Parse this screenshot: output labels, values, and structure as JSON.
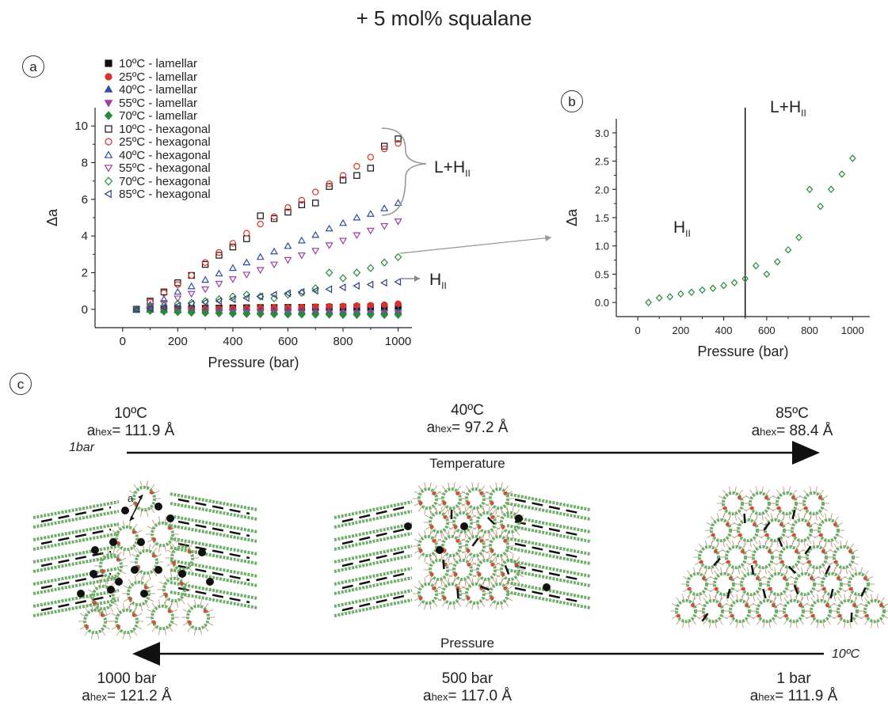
{
  "title": "+ 5 mol% squalane",
  "panels": {
    "a": "a",
    "b": "b",
    "c": "c"
  },
  "chart_data": [
    {
      "type": "scatter",
      "panel": "a",
      "xlabel": "Pressure (bar)",
      "ylabel": "Δa",
      "xlim": [
        -100,
        1050
      ],
      "ylim": [
        -1,
        11
      ],
      "xticks": [
        0,
        200,
        400,
        600,
        800,
        1000
      ],
      "yticks": [
        0,
        2,
        4,
        6,
        8,
        10
      ],
      "legend_placement": "top-left",
      "series": [
        {
          "name": "10ºC - lamellar",
          "marker": "square-filled",
          "color": "#111111",
          "x": [
            50,
            100,
            150,
            200,
            250,
            300,
            350,
            400,
            450,
            500,
            550,
            600,
            650,
            700,
            750,
            800,
            850,
            900,
            950,
            1000
          ],
          "y": [
            0,
            0.02,
            0.03,
            0.04,
            0.05,
            0.06,
            0.07,
            0.08,
            0.09,
            0.1,
            0.1,
            0.11,
            0.11,
            0.12,
            0.12,
            0.13,
            0.13,
            0.14,
            0.14,
            0.15
          ]
        },
        {
          "name": "25ºC - lamellar",
          "marker": "circle-filled",
          "color": "#d9312b",
          "x": [
            50,
            100,
            150,
            200,
            250,
            300,
            350,
            400,
            450,
            500,
            550,
            600,
            650,
            700,
            750,
            800,
            850,
            900,
            950,
            1000
          ],
          "y": [
            0,
            0.0,
            0.0,
            0.0,
            0.02,
            0.03,
            0.04,
            0.05,
            0.06,
            0.08,
            0.09,
            0.1,
            0.12,
            0.14,
            0.16,
            0.18,
            0.2,
            0.22,
            0.25,
            0.3
          ]
        },
        {
          "name": "40ºC - lamellar",
          "marker": "triangle-up-filled",
          "color": "#2e4f9e",
          "x": [
            50,
            100,
            150,
            200,
            250,
            300,
            350,
            400,
            450,
            500,
            550,
            600,
            650,
            700,
            750,
            800,
            850,
            900,
            950,
            1000
          ],
          "y": [
            0,
            -0.03,
            -0.05,
            -0.06,
            -0.07,
            -0.08,
            -0.08,
            -0.09,
            -0.09,
            -0.1,
            -0.1,
            -0.1,
            -0.1,
            -0.1,
            -0.1,
            -0.1,
            -0.1,
            -0.1,
            -0.1,
            -0.1
          ]
        },
        {
          "name": "55ºC - lamellar",
          "marker": "triangle-down-filled",
          "color": "#9c3fa0",
          "x": [
            50,
            100,
            150,
            200,
            250,
            300,
            350,
            400,
            450,
            500,
            550,
            600,
            650,
            700,
            750,
            800,
            850,
            900,
            950,
            1000
          ],
          "y": [
            0,
            -0.05,
            -0.08,
            -0.1,
            -0.12,
            -0.13,
            -0.14,
            -0.15,
            -0.16,
            -0.17,
            -0.17,
            -0.18,
            -0.18,
            -0.18,
            -0.18,
            -0.19,
            -0.19,
            -0.19,
            -0.19,
            -0.2
          ]
        },
        {
          "name": "70ºC - lamellar",
          "marker": "diamond-filled",
          "color": "#2a8a3a",
          "x": [
            50,
            100,
            150,
            200,
            250,
            300,
            350,
            400,
            450,
            500,
            550,
            600,
            650,
            700,
            750,
            800,
            850,
            900,
            950,
            1000
          ],
          "y": [
            0,
            -0.08,
            -0.12,
            -0.15,
            -0.18,
            -0.2,
            -0.22,
            -0.24,
            -0.25,
            -0.26,
            -0.27,
            -0.28,
            -0.28,
            -0.29,
            -0.29,
            -0.3,
            -0.3,
            -0.3,
            -0.3,
            -0.3
          ]
        },
        {
          "name": "10ºC - hexagonal",
          "marker": "square-open",
          "color": "#111111",
          "x": [
            50,
            100,
            150,
            200,
            250,
            300,
            350,
            400,
            450,
            500,
            550,
            600,
            650,
            700,
            750,
            800,
            850,
            900,
            950,
            1000
          ],
          "y": [
            0,
            0.45,
            0.95,
            1.45,
            1.85,
            2.45,
            2.95,
            3.4,
            3.85,
            5.1,
            4.95,
            5.3,
            5.7,
            5.8,
            6.7,
            7.05,
            7.3,
            7.7,
            8.9,
            9.3
          ]
        },
        {
          "name": "25ºC - hexagonal",
          "marker": "circle-open",
          "color": "#d9312b",
          "x": [
            50,
            100,
            150,
            200,
            250,
            300,
            350,
            400,
            450,
            500,
            550,
            600,
            650,
            700,
            750,
            800,
            850,
            900,
            950,
            1000
          ],
          "y": [
            0,
            0.4,
            0.9,
            1.35,
            1.85,
            2.55,
            3.1,
            3.6,
            4.15,
            4.65,
            5.05,
            5.55,
            5.95,
            6.4,
            6.85,
            7.3,
            7.8,
            8.3,
            8.75,
            9.05
          ]
        },
        {
          "name": "40ºC - hexagonal",
          "marker": "triangle-up-open",
          "color": "#2e4f9e",
          "x": [
            50,
            100,
            150,
            200,
            250,
            300,
            350,
            400,
            450,
            500,
            550,
            600,
            650,
            700,
            750,
            800,
            850,
            900,
            950,
            1000
          ],
          "y": [
            0,
            0.25,
            0.55,
            0.95,
            1.25,
            1.6,
            1.95,
            2.25,
            2.55,
            2.85,
            3.15,
            3.45,
            3.75,
            4.05,
            4.4,
            4.7,
            5.0,
            5.2,
            5.5,
            5.8
          ]
        },
        {
          "name": "55ºC - hexagonal",
          "marker": "triangle-down-open",
          "color": "#9c3fa0",
          "x": [
            50,
            100,
            150,
            200,
            250,
            300,
            350,
            400,
            450,
            500,
            550,
            600,
            650,
            700,
            750,
            800,
            850,
            900,
            950,
            1000
          ],
          "y": [
            0,
            0.15,
            0.35,
            0.6,
            0.85,
            1.1,
            1.4,
            1.65,
            1.9,
            2.15,
            2.45,
            2.7,
            2.95,
            3.2,
            3.5,
            3.75,
            4.05,
            4.3,
            4.55,
            4.8
          ]
        },
        {
          "name": "70ºC - hexagonal",
          "marker": "diamond-open",
          "color": "#2a8a3a",
          "x": [
            50,
            100,
            150,
            200,
            250,
            300,
            350,
            400,
            450,
            500,
            550,
            600,
            650,
            700,
            750,
            800,
            850,
            900,
            950,
            1000
          ],
          "y": [
            0,
            0.1,
            0.2,
            0.3,
            0.35,
            0.45,
            0.55,
            0.7,
            0.8,
            0.7,
            0.6,
            0.8,
            0.9,
            1.15,
            2.0,
            1.7,
            2.0,
            2.25,
            2.55,
            2.85
          ]
        },
        {
          "name": "85ºC - hexagonal",
          "marker": "triangle-left-open",
          "color": "#2e3f7e",
          "x": [
            50,
            100,
            150,
            200,
            250,
            300,
            350,
            400,
            450,
            500,
            550,
            600,
            650,
            700,
            750,
            800,
            850,
            900,
            950,
            1000
          ],
          "y": [
            0,
            0.05,
            0.12,
            0.2,
            0.3,
            0.38,
            0.45,
            0.55,
            0.62,
            0.7,
            0.8,
            0.88,
            0.95,
            1.02,
            1.1,
            1.2,
            1.28,
            1.35,
            1.45,
            1.5
          ]
        }
      ],
      "annotations": [
        {
          "text": "L+H",
          "subscript": "II"
        },
        {
          "text": "H",
          "subscript": "II"
        }
      ]
    },
    {
      "type": "scatter",
      "panel": "b",
      "xlabel": "Pressure (bar)",
      "ylabel": "Δa",
      "xlim": [
        -100,
        1080
      ],
      "ylim": [
        -0.25,
        3.25
      ],
      "xticks": [
        0,
        200,
        400,
        600,
        800,
        1000
      ],
      "yticks": [
        0.0,
        0.5,
        1.0,
        1.5,
        2.0,
        2.5,
        3.0
      ],
      "divider_x": 500,
      "series": [
        {
          "marker": "diamond-open",
          "color": "#2a8a3a",
          "x": [
            50,
            100,
            150,
            200,
            250,
            300,
            350,
            400,
            450,
            500,
            550,
            600,
            650,
            700,
            750,
            800,
            850,
            900,
            950,
            1000
          ],
          "y": [
            0.0,
            0.08,
            0.1,
            0.15,
            0.18,
            0.22,
            0.25,
            0.3,
            0.35,
            0.42,
            0.65,
            0.5,
            0.72,
            0.93,
            1.15,
            2.0,
            1.7,
            2.0,
            2.27,
            2.55
          ]
        }
      ],
      "annotations": [
        {
          "text": "H",
          "subscript": "II"
        },
        {
          "text": "L+H",
          "subscript": "II"
        }
      ]
    }
  ],
  "schematic": {
    "temperature_axis": {
      "label": "Temperature",
      "start_note": "1bar",
      "states": [
        {
          "temp": "10ºC",
          "value": "= 111.9 Å"
        },
        {
          "temp": "40ºC",
          "value": "= 97.2 Å"
        },
        {
          "temp": "85ºC",
          "value": "= 88.4 Å"
        }
      ]
    },
    "pressure_axis": {
      "label": "Pressure",
      "end_note": "10ºC",
      "states": [
        {
          "pressure": "1000 bar",
          "value": "= 121.2 Å"
        },
        {
          "pressure": "500 bar",
          "value": "= 117.0 Å"
        },
        {
          "pressure": "1 bar",
          "value": "= 111.9 Å"
        }
      ]
    },
    "lattice_symbol": "a",
    "param_symbol": "a",
    "param_subscript": "hex",
    "colors": {
      "lipid_head": "#6fae6a",
      "lipid_head_red": "#d9483a",
      "tail": "#b58a6a",
      "squalane": "#111111"
    }
  }
}
